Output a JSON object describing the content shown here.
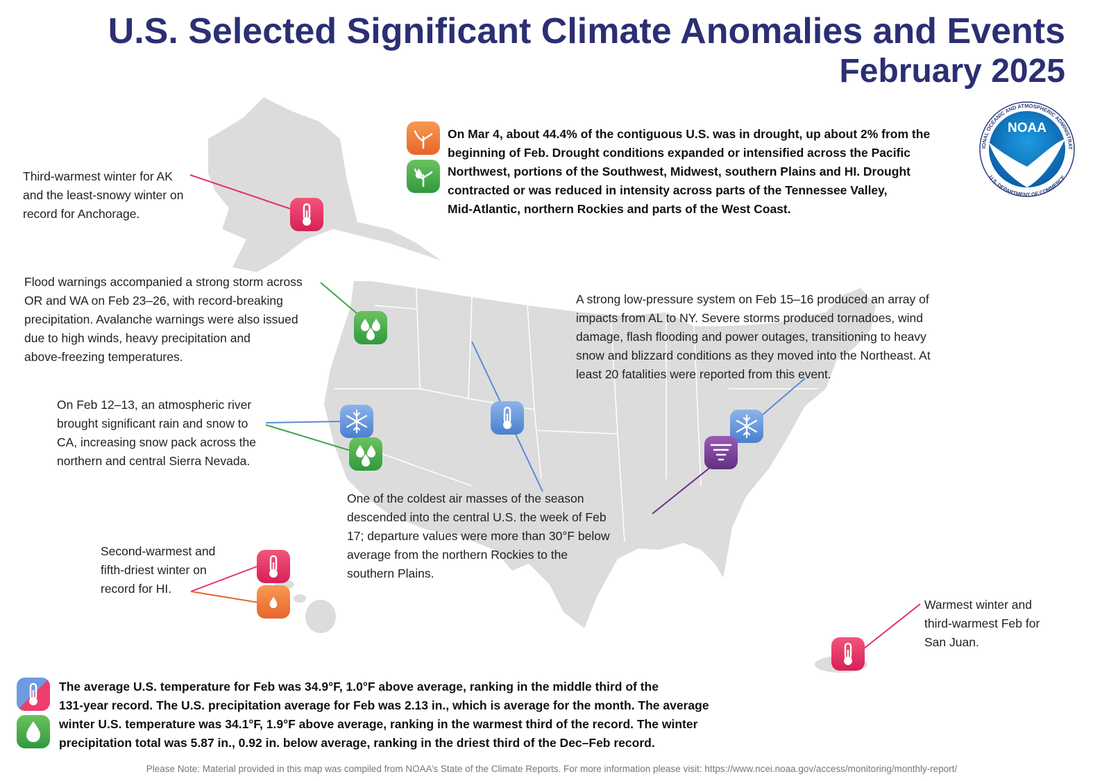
{
  "header": {
    "title": "U.S. Selected Significant Climate Anomalies and Events",
    "subtitle": "February 2025"
  },
  "logo": {
    "name": "NOAA",
    "top_ring": "NATIONAL OCEANIC AND ATMOSPHERIC ADMINISTRATION",
    "bottom_ring": "U.S. DEPARTMENT OF COMMERCE"
  },
  "annotations": [
    {
      "lines": [
        "On Mar 4, about 44.4% of the contiguous U.S. was in drought, up about 2% from the",
        "beginning of Feb. Drought conditions expanded or intensified across the Pacific",
        "Northwest, portions of the Southwest, Midwest, southern Plains and HI. Drought",
        "contracted or was reduced in intensity across parts of the Tennessee Valley,",
        "Mid-Atlantic, northern Rockies and parts of the West Coast."
      ]
    },
    {
      "lines": [
        "Third-warmest winter for AK",
        "and the least-snowy winter on",
        "record for Anchorage."
      ]
    },
    {
      "lines": [
        "Flood warnings accompanied a strong storm across",
        "OR and WA on Feb 23–26, with record-breaking",
        "precipitation. Avalanche warnings were also issued",
        "due to high winds, heavy precipitation and",
        "above-freezing temperatures."
      ]
    },
    {
      "lines": [
        "On Feb 12–13, an atmospheric river",
        "brought significant rain and snow to",
        "CA, increasing snow pack across the",
        "northern and central Sierra Nevada."
      ]
    },
    {
      "lines": [
        "A strong low-pressure system on Feb 15–16 produced an array of",
        "impacts from AL to NY. Severe storms produced tornadoes, wind",
        "damage, flash flooding and power outages, transitioning to heavy",
        "snow and blizzard conditions as they moved into the Northeast. At",
        "least 20 fatalities were reported from this event."
      ]
    },
    {
      "lines": [
        "One of the coldest air masses of the season",
        "descended into the central U.S. the week of Feb",
        "17; departure values were more than 30°F below",
        "average from the northern Rockies to the",
        "southern Plains."
      ]
    },
    {
      "lines": [
        "Second-warmest and",
        "fifth-driest winter on",
        "record for HI."
      ]
    },
    {
      "lines": [
        "Warmest winter and",
        "third-warmest Feb for",
        "San Juan."
      ]
    }
  ],
  "summary": {
    "lines": [
      "The average U.S. temperature for Feb was 34.9°F, 1.0°F above average, ranking in the middle third of the",
      "131-year record. The U.S. precipitation average for Feb was 2.13 in., which is average for the month. The average",
      "winter U.S. temperature was 34.1°F, 1.9°F above average, ranking in the warmest third of the record. The winter",
      "precipitation total was 5.87 in., 0.92 in. below average, ranking in the driest third of the Dec–Feb record."
    ]
  },
  "note": "Please Note: Material provided in this map was compiled from NOAA’s State of the Climate Reports. For more information please visit: https://www.ncei.noaa.gov/access/monitoring/monthly-report/"
}
